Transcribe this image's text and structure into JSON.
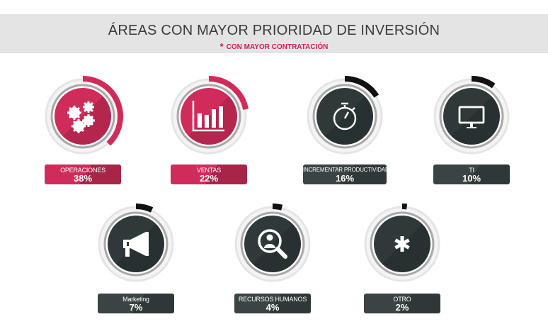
{
  "header": {
    "title": "ÁREAS CON MAYOR PRIORIDAD DE INVERSIÓN",
    "star": "*",
    "subtitle": "CON MAYOR CONTRATACIÓN"
  },
  "colors": {
    "highlight": "#cf2c59",
    "dark": "#2f393a",
    "ring": "#e5e5e5"
  },
  "items": [
    {
      "label": "OPERACIONES",
      "value": "38%",
      "percent": 38,
      "highlighted": true,
      "icon": "gears-icon"
    },
    {
      "label": "VENTAS",
      "value": "22%",
      "percent": 22,
      "highlighted": true,
      "icon": "bar-chart-icon"
    },
    {
      "label": "INCREMENTAR PRODUCTIVIDAD",
      "value": "16%",
      "percent": 16,
      "highlighted": false,
      "icon": "stopwatch-icon"
    },
    {
      "label": "TI",
      "value": "10%",
      "percent": 10,
      "highlighted": false,
      "icon": "monitor-icon"
    },
    {
      "label": "Marketing",
      "value": "7%",
      "percent": 7,
      "highlighted": false,
      "icon": "megaphone-icon"
    },
    {
      "label": "RECURSOS HUMANOS",
      "value": "4%",
      "percent": 4,
      "highlighted": false,
      "icon": "user-search-icon"
    },
    {
      "label": "OTRO",
      "value": "2%",
      "percent": 2,
      "highlighted": false,
      "icon": "asterisk-icon"
    }
  ]
}
